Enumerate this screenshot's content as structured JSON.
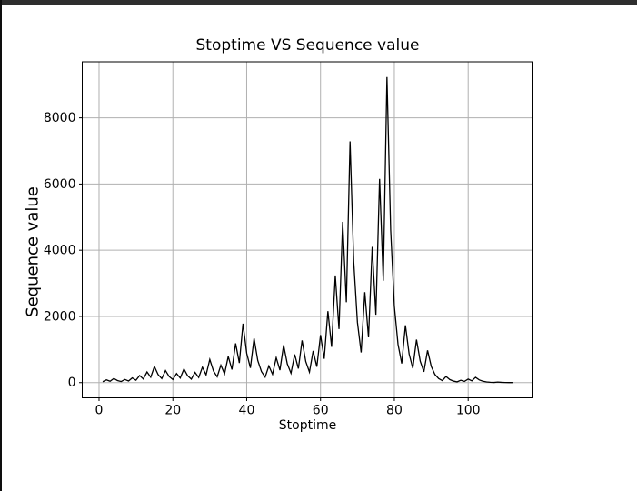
{
  "window": {
    "background": "#ffffff",
    "top_border_color": "#2e2e2e",
    "left_border_color": "#0e0e0e"
  },
  "chart_data": {
    "type": "line",
    "title": "Stoptime VS Sequence value",
    "xlabel": "Stoptime",
    "ylabel": "Sequence value",
    "grid": true,
    "legend_position": "none",
    "line_color": "#000000",
    "grid_color": "#b0b0b0",
    "spine_color": "#000000",
    "text_color": "#000000",
    "x_ticks": [
      0,
      20,
      40,
      60,
      80,
      100
    ],
    "y_ticks": [
      0,
      2000,
      4000,
      6000,
      8000
    ],
    "xlim": [
      -4.55,
      117.55
    ],
    "ylim": [
      -460.55,
      9693.55
    ],
    "x": [
      1,
      2,
      3,
      4,
      5,
      6,
      7,
      8,
      9,
      10,
      11,
      12,
      13,
      14,
      15,
      16,
      17,
      18,
      19,
      20,
      21,
      22,
      23,
      24,
      25,
      26,
      27,
      28,
      29,
      30,
      31,
      32,
      33,
      34,
      35,
      36,
      37,
      38,
      39,
      40,
      41,
      42,
      43,
      44,
      45,
      46,
      47,
      48,
      49,
      50,
      51,
      52,
      53,
      54,
      55,
      56,
      57,
      58,
      59,
      60,
      61,
      62,
      63,
      64,
      65,
      66,
      67,
      68,
      69,
      70,
      71,
      72,
      73,
      74,
      75,
      76,
      77,
      78,
      79,
      80,
      81,
      82,
      83,
      84,
      85,
      86,
      87,
      88,
      89,
      90,
      91,
      92,
      93,
      94,
      95,
      96,
      97,
      98,
      99,
      100,
      101,
      102,
      103,
      104,
      105,
      106,
      107,
      108,
      109,
      110,
      111,
      112
    ],
    "y": [
      27,
      82,
      41,
      124,
      62,
      31,
      94,
      47,
      142,
      71,
      214,
      107,
      322,
      161,
      484,
      242,
      121,
      364,
      182,
      91,
      274,
      137,
      412,
      206,
      103,
      310,
      155,
      466,
      233,
      700,
      350,
      175,
      526,
      263,
      790,
      395,
      1186,
      593,
      1780,
      890,
      445,
      1336,
      668,
      334,
      167,
      502,
      251,
      754,
      377,
      1132,
      566,
      283,
      850,
      425,
      1276,
      638,
      319,
      958,
      479,
      1438,
      719,
      2158,
      1079,
      3238,
      1619,
      4858,
      2429,
      7288,
      3644,
      1822,
      911,
      2734,
      1367,
      4102,
      2051,
      6154,
      3077,
      9232,
      4616,
      2308,
      1154,
      577,
      1732,
      866,
      433,
      1300,
      650,
      325,
      976,
      488,
      244,
      122,
      61,
      184,
      92,
      46,
      23,
      70,
      35,
      106,
      53,
      160,
      80,
      40,
      20,
      10,
      5,
      16,
      8,
      4,
      2,
      1
    ]
  }
}
